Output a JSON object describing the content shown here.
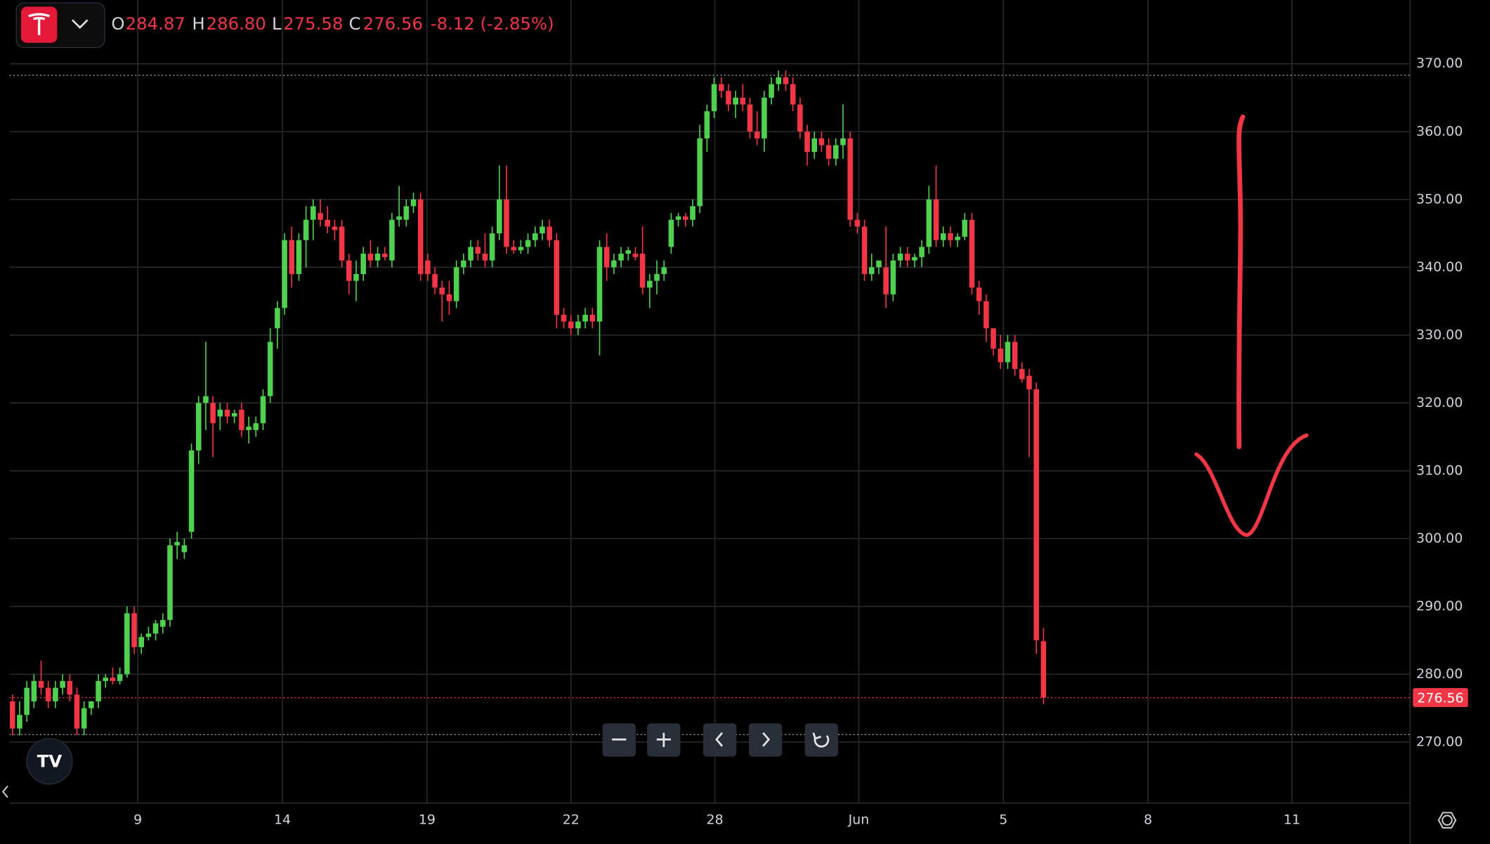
{
  "chart_data": {
    "type": "candlestick",
    "header": [
      {
        "key": "O",
        "value": "284.87"
      },
      {
        "key": "H",
        "value": "286.80"
      },
      {
        "key": "L",
        "value": "275.58"
      },
      {
        "key": "C",
        "value": "276.56"
      }
    ],
    "change": "-8.12 (-2.85%)",
    "up_color": "#4fd14f",
    "down_color": "#f23645",
    "ylim": [
      261,
      379.4
    ],
    "yticks": [
      {
        "value": 270,
        "label": "270.00"
      },
      {
        "value": 280,
        "label": "280.00"
      },
      {
        "value": 290,
        "label": "290.00"
      },
      {
        "value": 300,
        "label": "300.00"
      },
      {
        "value": 310,
        "label": "310.00"
      },
      {
        "value": 320,
        "label": "320.00"
      },
      {
        "value": 330,
        "label": "330.00"
      },
      {
        "value": 340,
        "label": "340.00"
      },
      {
        "value": 350,
        "label": "350.00"
      },
      {
        "value": 360,
        "label": "360.00"
      },
      {
        "value": 370,
        "label": "370.00"
      }
    ],
    "xlim": [
      -0.4,
      195.2
    ],
    "xticks": [
      {
        "value": 17.5,
        "label": "9"
      },
      {
        "value": 37.7,
        "label": "14"
      },
      {
        "value": 57.9,
        "label": "19"
      },
      {
        "value": 78,
        "label": "22"
      },
      {
        "value": 98.1,
        "label": "28"
      },
      {
        "value": 118.2,
        "label": "Jun"
      },
      {
        "value": 138.4,
        "label": "5"
      },
      {
        "value": 158.6,
        "label": "8"
      },
      {
        "value": 178.7,
        "label": "11"
      }
    ],
    "range_high": 368.3,
    "range_low": 271.1,
    "candles": [
      [
        276,
        277,
        271,
        272
      ],
      [
        272,
        276,
        271,
        274
      ],
      [
        274,
        279,
        273,
        278
      ],
      [
        276,
        280,
        275,
        279
      ],
      [
        279,
        282,
        277,
        278
      ],
      [
        278,
        279,
        275,
        276
      ],
      [
        276,
        279,
        275,
        278
      ],
      [
        278,
        280,
        277,
        279
      ],
      [
        279,
        280,
        276,
        277
      ],
      [
        277,
        278,
        271,
        272
      ],
      [
        272,
        276,
        271,
        275
      ],
      [
        275,
        276,
        274,
        276
      ],
      [
        276,
        280,
        275,
        279
      ],
      [
        279,
        280,
        278,
        279.5
      ],
      [
        279.5,
        281,
        278.5,
        279
      ],
      [
        279,
        281,
        278.5,
        280
      ],
      [
        280,
        290,
        279.5,
        289
      ],
      [
        289,
        290,
        283,
        284
      ],
      [
        284,
        286,
        283,
        285.5
      ],
      [
        285.5,
        287,
        285,
        286
      ],
      [
        286,
        288,
        285,
        287.5
      ],
      [
        287,
        289,
        286,
        288
      ],
      [
        288,
        300,
        287,
        299
      ],
      [
        299,
        301,
        297,
        299.5
      ],
      [
        298,
        300,
        297,
        299
      ],
      [
        301,
        314,
        300,
        313
      ],
      [
        313,
        321,
        311,
        320
      ],
      [
        320,
        329,
        316,
        321
      ],
      [
        320,
        321,
        312,
        317
      ],
      [
        318,
        320,
        316,
        319
      ],
      [
        319,
        320,
        317,
        318
      ],
      [
        318,
        319,
        317,
        318.5
      ],
      [
        319,
        320,
        315,
        316
      ],
      [
        316,
        318,
        314,
        316.5
      ],
      [
        316,
        318,
        315,
        317
      ],
      [
        317,
        322,
        316,
        321
      ],
      [
        321,
        331,
        320,
        329
      ],
      [
        331,
        335,
        328,
        334
      ],
      [
        334,
        345,
        333,
        344
      ],
      [
        344,
        346,
        337,
        339
      ],
      [
        339,
        345,
        338,
        344
      ],
      [
        344,
        349,
        340,
        347
      ],
      [
        347,
        350,
        344,
        349
      ],
      [
        348,
        350,
        346,
        347
      ],
      [
        347,
        349,
        345,
        346
      ],
      [
        346,
        347,
        344,
        345.5
      ],
      [
        346,
        347,
        340,
        341
      ],
      [
        341,
        342,
        336,
        338
      ],
      [
        338,
        341,
        335,
        339
      ],
      [
        339,
        343,
        338,
        342
      ],
      [
        342,
        344,
        340,
        341
      ],
      [
        341,
        343,
        340,
        342
      ],
      [
        342,
        343,
        341,
        341.5
      ],
      [
        341,
        348,
        340,
        347
      ],
      [
        347,
        352,
        346,
        347.5
      ],
      [
        347,
        350,
        346,
        349
      ],
      [
        349,
        351,
        348,
        350
      ],
      [
        350,
        351,
        338,
        339
      ],
      [
        341,
        342,
        338,
        339
      ],
      [
        339,
        340,
        336,
        337
      ],
      [
        337,
        338,
        332,
        336
      ],
      [
        336,
        338,
        333,
        335
      ],
      [
        335,
        341,
        334,
        340
      ],
      [
        340,
        342,
        339,
        341
      ],
      [
        341,
        344,
        340,
        343
      ],
      [
        343,
        344,
        341,
        342
      ],
      [
        342,
        345,
        340,
        341
      ],
      [
        341,
        346,
        340,
        345
      ],
      [
        345,
        355,
        344,
        350
      ],
      [
        350,
        355,
        342,
        343
      ],
      [
        343,
        344,
        342,
        342.5
      ],
      [
        342.5,
        344,
        342,
        343
      ],
      [
        343,
        345,
        342,
        344
      ],
      [
        344,
        346,
        343,
        345
      ],
      [
        345,
        347,
        344,
        346
      ],
      [
        346,
        347,
        343,
        344
      ],
      [
        344,
        345,
        331,
        333
      ],
      [
        333,
        334,
        331,
        332
      ],
      [
        332,
        333,
        330,
        331
      ],
      [
        331,
        333,
        330,
        332
      ],
      [
        332,
        334,
        331,
        333
      ],
      [
        333,
        334,
        331,
        332
      ],
      [
        332,
        344,
        327,
        343
      ],
      [
        343,
        345,
        338,
        340
      ],
      [
        340,
        342,
        339,
        341
      ],
      [
        341,
        343,
        340,
        342
      ],
      [
        342,
        343,
        341,
        342.5
      ],
      [
        342,
        343,
        341,
        341.5
      ],
      [
        342,
        346,
        336,
        337
      ],
      [
        337,
        339,
        334,
        338
      ],
      [
        338,
        341,
        336,
        339
      ],
      [
        339,
        341,
        338,
        340
      ],
      [
        343,
        348,
        342,
        347
      ],
      [
        347,
        348,
        346,
        347.5
      ],
      [
        347.5,
        348,
        346,
        347
      ],
      [
        347,
        350,
        346,
        349
      ],
      [
        349,
        361,
        348,
        359
      ],
      [
        359,
        364,
        357,
        363
      ],
      [
        363,
        368,
        362,
        367
      ],
      [
        367,
        368,
        365,
        366
      ],
      [
        366,
        367,
        363,
        364
      ],
      [
        364,
        366,
        362,
        365
      ],
      [
        365,
        367,
        363,
        364
      ],
      [
        364,
        365,
        359,
        360
      ],
      [
        360,
        363,
        358,
        359
      ],
      [
        359,
        366,
        357,
        365
      ],
      [
        365,
        368,
        364,
        367
      ],
      [
        367,
        369,
        366,
        368
      ],
      [
        368,
        369,
        366,
        367
      ],
      [
        367,
        368,
        363,
        364
      ],
      [
        364,
        365,
        359,
        360
      ],
      [
        360,
        361,
        355,
        357
      ],
      [
        357,
        360,
        356,
        359
      ],
      [
        359,
        360,
        357,
        358
      ],
      [
        358,
        359,
        355,
        356
      ],
      [
        356,
        359,
        355,
        358
      ],
      [
        358,
        364,
        356,
        359
      ],
      [
        359,
        360,
        346,
        347
      ],
      [
        347,
        348,
        345,
        346
      ],
      [
        346,
        347,
        338,
        339
      ],
      [
        339,
        342,
        338,
        340
      ],
      [
        340,
        341,
        339,
        341
      ],
      [
        340,
        346,
        334,
        336
      ],
      [
        336,
        342,
        335,
        341
      ],
      [
        341,
        343,
        340,
        342
      ],
      [
        342,
        343,
        340,
        341
      ],
      [
        341,
        342,
        340,
        341.5
      ],
      [
        341.5,
        344,
        340,
        343
      ],
      [
        343,
        352,
        342,
        350
      ],
      [
        350,
        355,
        343,
        344
      ],
      [
        344,
        346,
        343,
        345
      ],
      [
        345,
        346,
        343,
        344
      ],
      [
        344,
        345,
        343,
        344.5
      ],
      [
        344.5,
        348,
        344,
        347
      ],
      [
        347,
        348,
        336,
        337
      ],
      [
        337,
        338,
        333,
        335
      ],
      [
        335,
        336,
        329,
        331
      ],
      [
        331,
        331,
        327,
        328
      ],
      [
        328,
        330,
        325,
        326
      ],
      [
        326,
        330,
        325,
        329
      ],
      [
        329,
        330,
        324,
        325
      ],
      [
        325,
        326,
        323,
        323.5
      ],
      [
        324,
        325,
        312,
        322
      ],
      [
        322,
        323,
        283,
        285
      ],
      [
        284.87,
        286.8,
        275.58,
        276.56
      ]
    ]
  }
}
